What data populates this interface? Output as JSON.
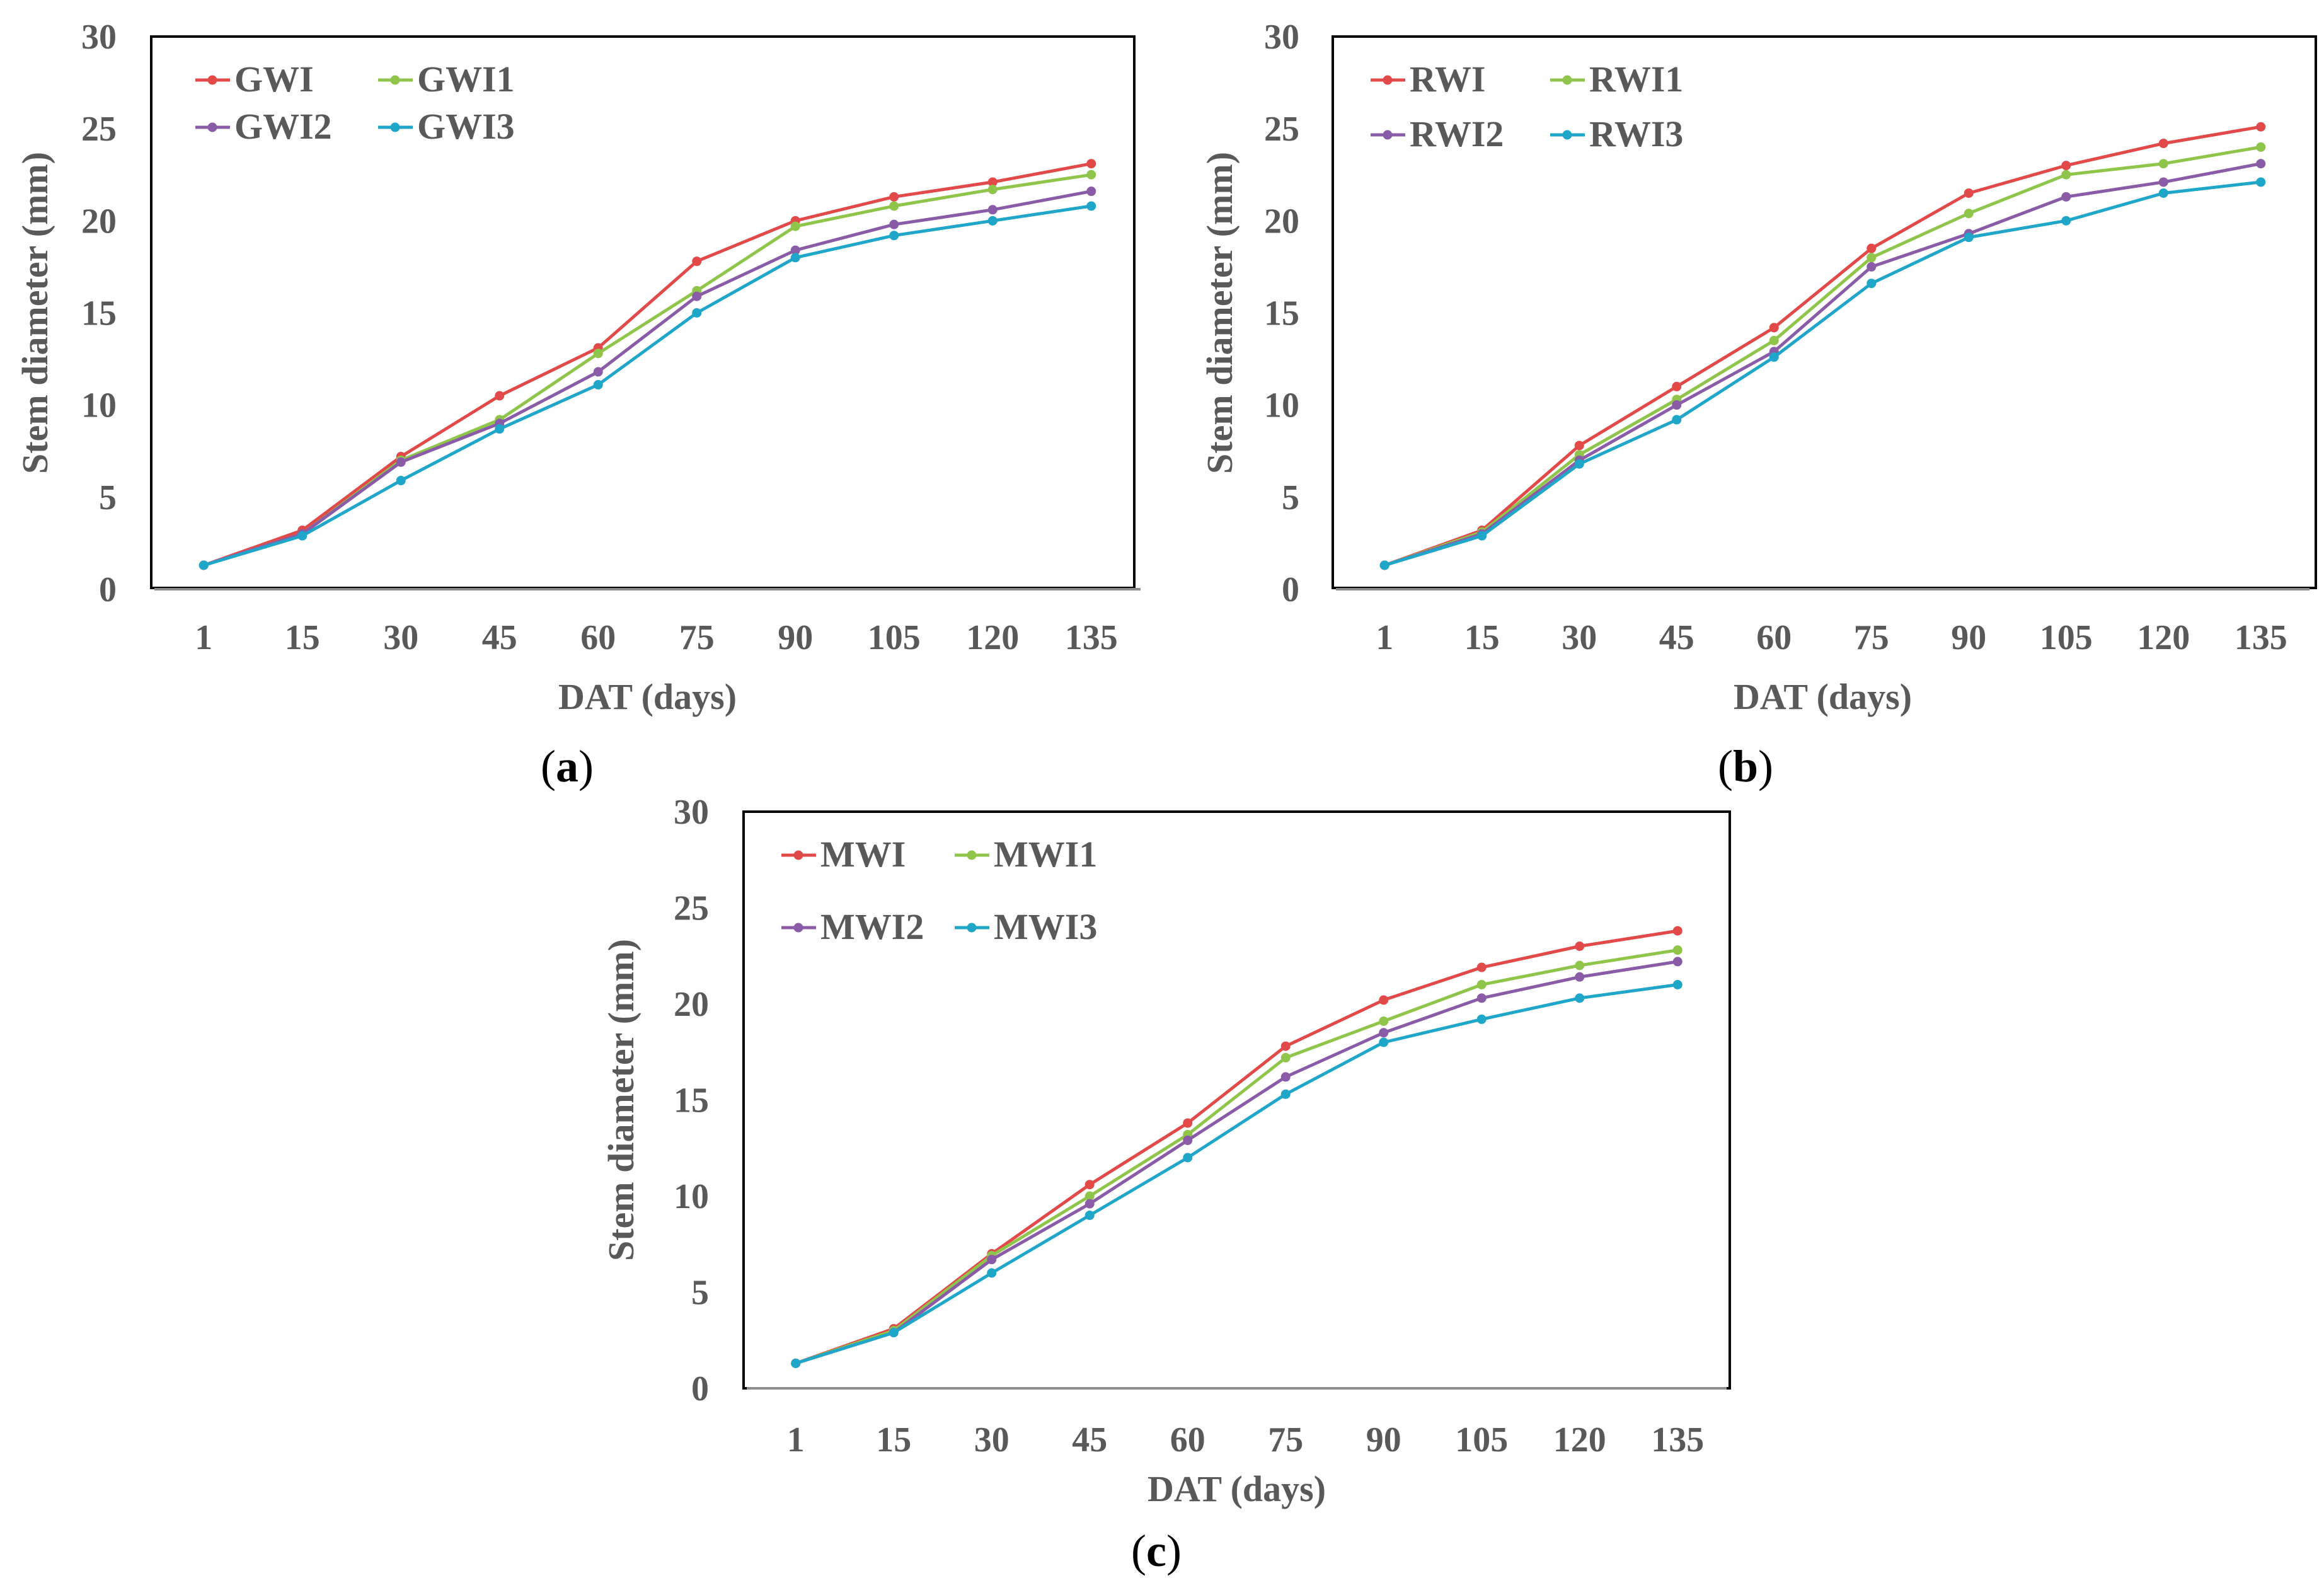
{
  "colors": {
    "red": "#e24a4a",
    "green": "#8fc54a",
    "purple": "#8a5ca8",
    "cyan": "#1fa6c9",
    "axis_text": "#595959",
    "frame": "#000000"
  },
  "chart_data": [
    {
      "type": "line",
      "caption_prefix": "(",
      "caption_letter": "a",
      "caption_suffix": ")",
      "xlabel": "DAT (days)",
      "ylabel": "Stem diameter (mm)",
      "categories": [
        "1",
        "15",
        "30",
        "45",
        "60",
        "75",
        "90",
        "105",
        "120",
        "135"
      ],
      "ylim": [
        0,
        30
      ],
      "yticks": [
        "0",
        "5",
        "10",
        "15",
        "20",
        "25",
        "30"
      ],
      "grid": false,
      "legend_position": "top-left",
      "series": [
        {
          "name": "GWI",
          "color_key": "red",
          "values": [
            1.3,
            3.2,
            7.2,
            10.5,
            13.1,
            17.8,
            20.0,
            21.3,
            22.1,
            23.1
          ]
        },
        {
          "name": "GWI1",
          "color_key": "green",
          "values": [
            1.3,
            3.0,
            7.0,
            9.2,
            12.8,
            16.2,
            19.7,
            20.8,
            21.7,
            22.5
          ]
        },
        {
          "name": "GWI2",
          "color_key": "purple",
          "values": [
            1.3,
            3.0,
            6.9,
            9.0,
            11.8,
            15.9,
            18.4,
            19.8,
            20.6,
            21.6
          ]
        },
        {
          "name": "GWI3",
          "color_key": "cyan",
          "values": [
            1.3,
            2.9,
            5.9,
            8.7,
            11.1,
            15.0,
            18.0,
            19.2,
            20.0,
            20.8
          ]
        }
      ]
    },
    {
      "type": "line",
      "caption_prefix": "(",
      "caption_letter": "b",
      "caption_suffix": ")",
      "xlabel": "DAT (days)",
      "ylabel": "Stem diameter (mm)",
      "categories": [
        "1",
        "15",
        "30",
        "45",
        "60",
        "75",
        "90",
        "105",
        "120",
        "135"
      ],
      "ylim": [
        0,
        30
      ],
      "yticks": [
        "0",
        "5",
        "10",
        "15",
        "20",
        "25",
        "30"
      ],
      "grid": false,
      "legend_position": "top-left",
      "series": [
        {
          "name": "RWI",
          "color_key": "red",
          "values": [
            1.3,
            3.2,
            7.8,
            11.0,
            14.2,
            18.5,
            21.5,
            23.0,
            24.2,
            25.1
          ]
        },
        {
          "name": "RWI1",
          "color_key": "green",
          "values": [
            1.3,
            3.1,
            7.3,
            10.3,
            13.5,
            18.0,
            20.4,
            22.5,
            23.1,
            24.0
          ]
        },
        {
          "name": "RWI2",
          "color_key": "purple",
          "values": [
            1.3,
            3.0,
            7.0,
            10.0,
            12.9,
            17.5,
            19.3,
            21.3,
            22.1,
            23.1
          ]
        },
        {
          "name": "RWI3",
          "color_key": "cyan",
          "values": [
            1.3,
            2.9,
            6.8,
            9.2,
            12.6,
            16.6,
            19.1,
            20.0,
            21.5,
            22.1
          ]
        }
      ]
    },
    {
      "type": "line",
      "caption_prefix": "(",
      "caption_letter": "c",
      "caption_suffix": ")",
      "xlabel": "DAT (days)",
      "ylabel": "Stem diameter (mm)",
      "categories": [
        "1",
        "15",
        "30",
        "45",
        "60",
        "75",
        "90",
        "105",
        "120",
        "135"
      ],
      "ylim": [
        0,
        30
      ],
      "yticks": [
        "0",
        "5",
        "10",
        "15",
        "20",
        "25",
        "30"
      ],
      "grid": false,
      "legend_position": "top-left",
      "series": [
        {
          "name": "MWI",
          "color_key": "red",
          "values": [
            1.3,
            3.1,
            7.0,
            10.6,
            13.8,
            17.8,
            20.2,
            21.9,
            23.0,
            23.8
          ]
        },
        {
          "name": "MWI1",
          "color_key": "green",
          "values": [
            1.3,
            3.0,
            6.9,
            10.0,
            13.2,
            17.2,
            19.1,
            21.0,
            22.0,
            22.8
          ]
        },
        {
          "name": "MWI2",
          "color_key": "purple",
          "values": [
            1.3,
            2.9,
            6.7,
            9.6,
            12.9,
            16.2,
            18.5,
            20.3,
            21.4,
            22.2
          ]
        },
        {
          "name": "MWI3",
          "color_key": "cyan",
          "values": [
            1.3,
            2.9,
            6.0,
            9.0,
            12.0,
            15.3,
            18.0,
            19.2,
            20.3,
            21.0
          ]
        }
      ]
    }
  ]
}
